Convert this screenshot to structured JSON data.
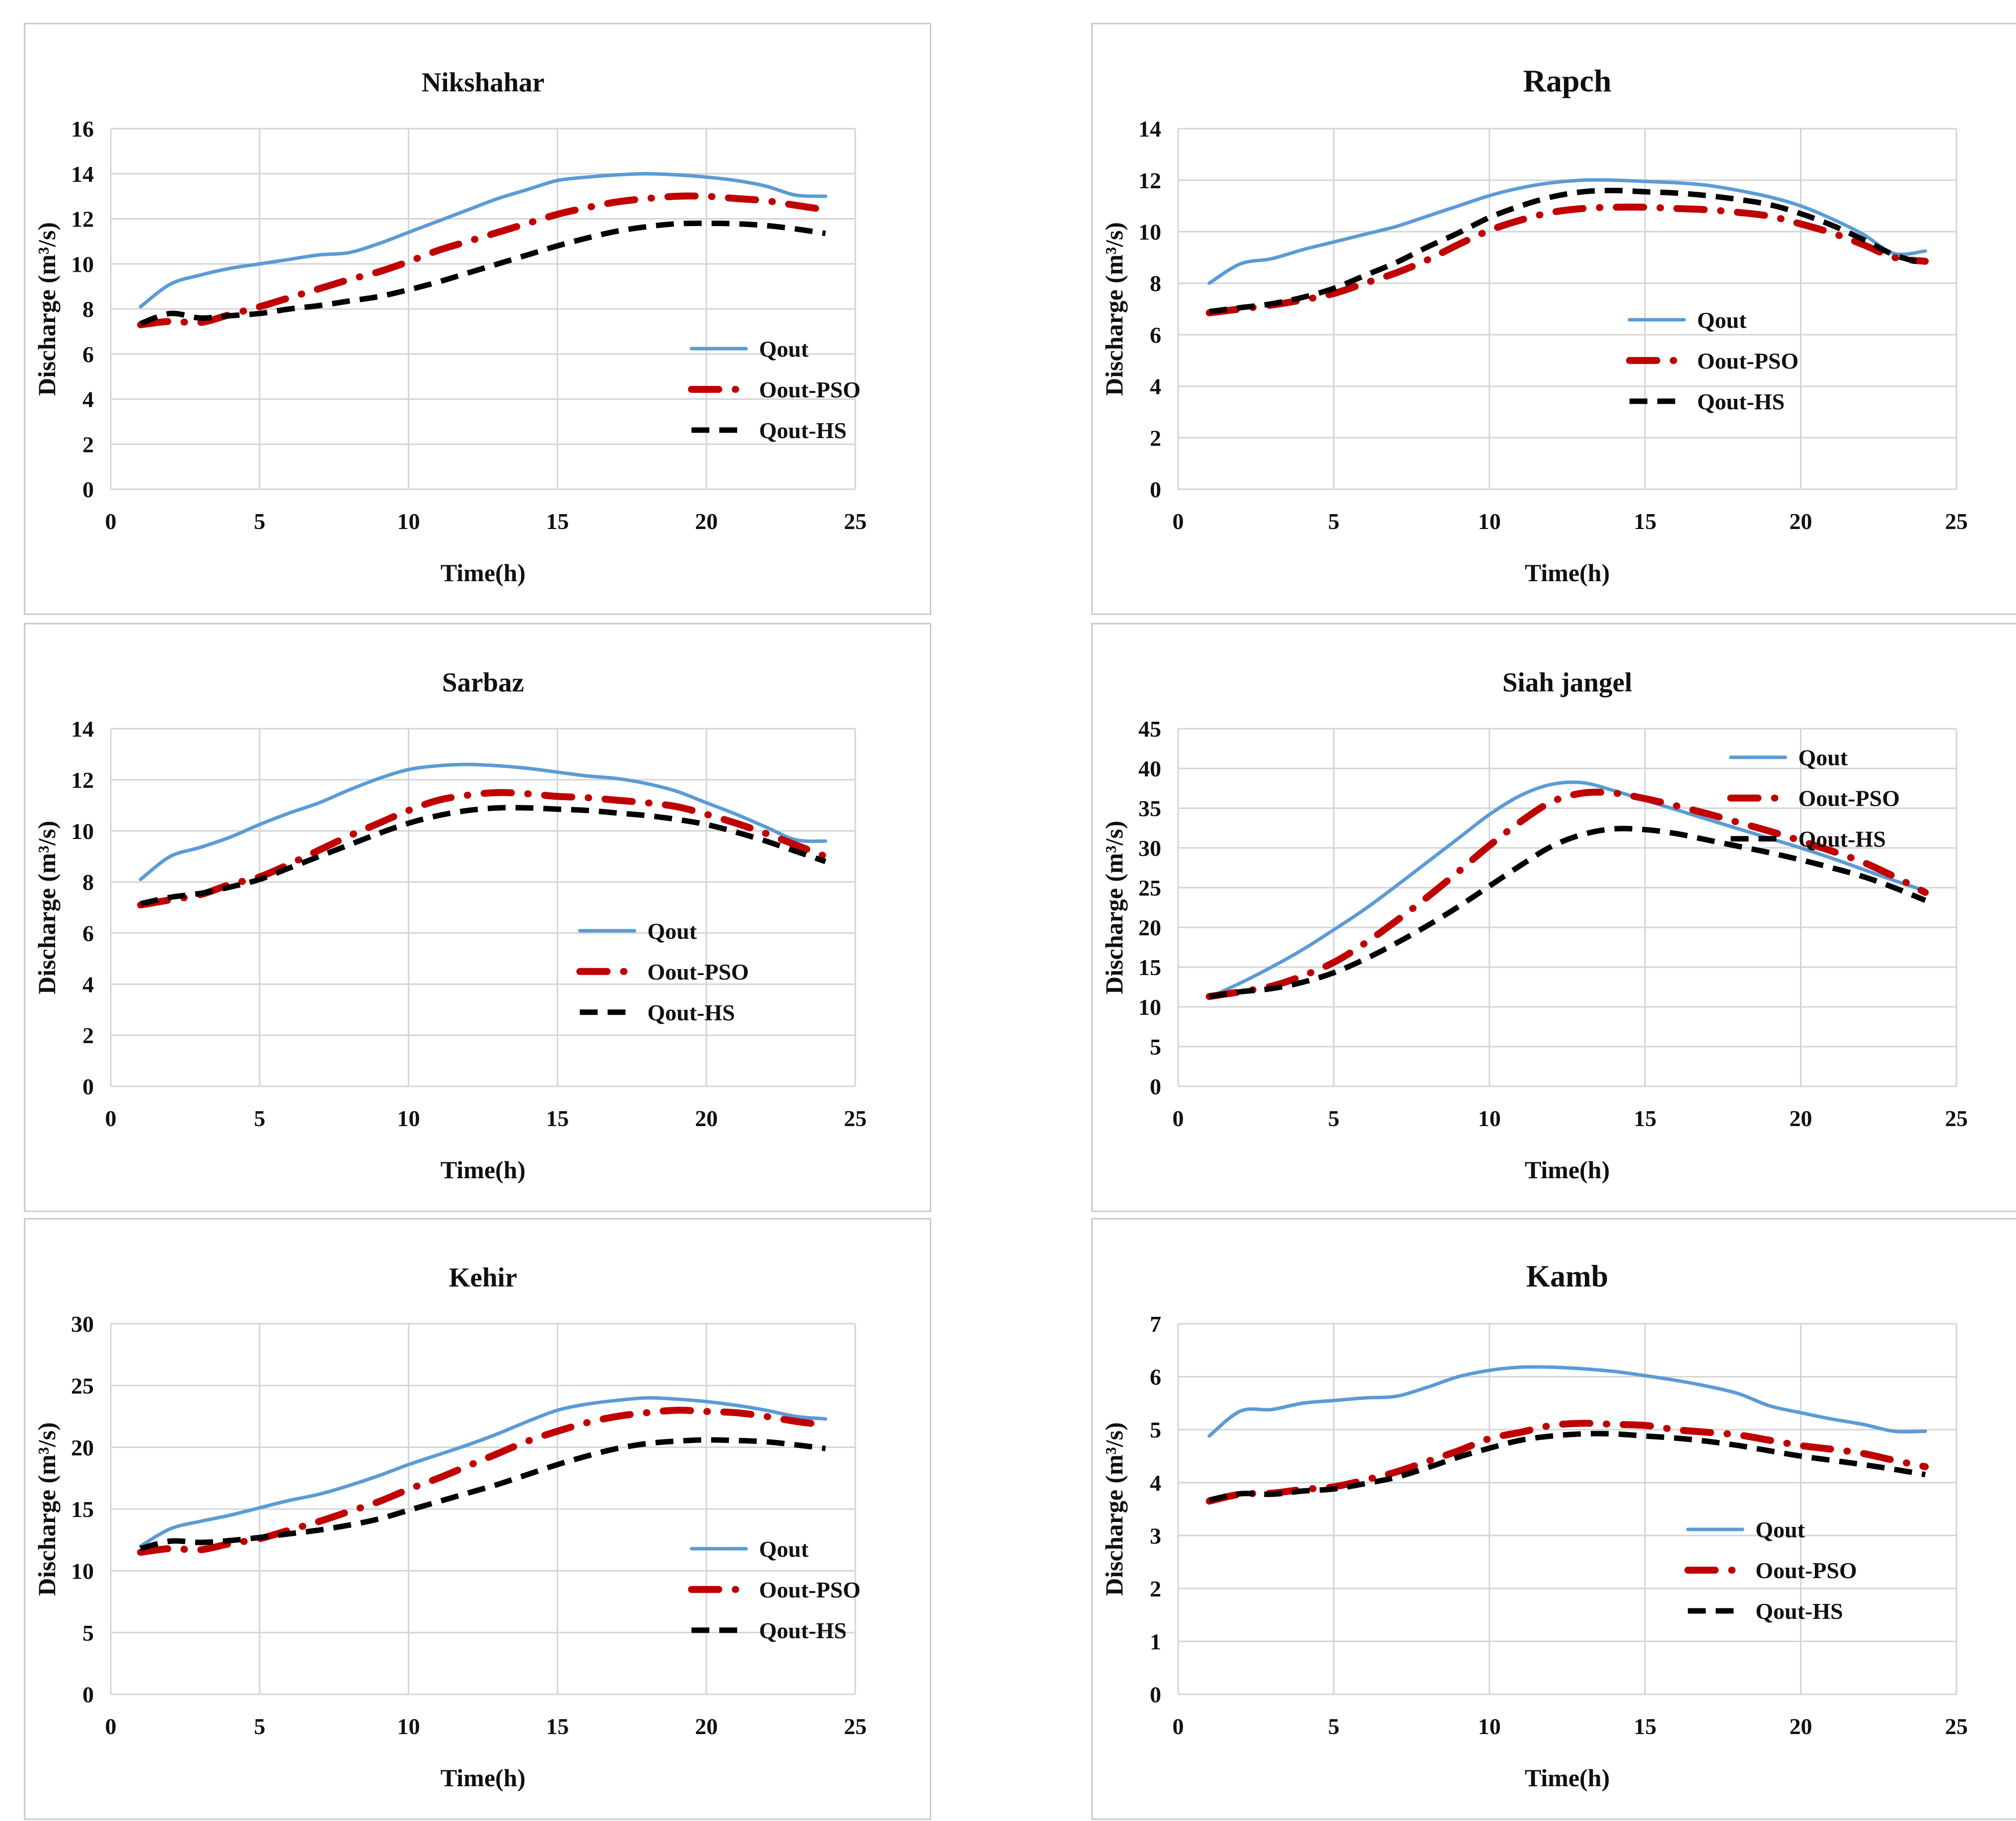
{
  "figure": {
    "background": "#ffffff",
    "panel_border": "#c9c9c9"
  },
  "colors": {
    "qout": "#5B9BD5",
    "pso": "#C00000",
    "hs": "#000000",
    "grid": "#d4d4d4",
    "text": "#101010"
  },
  "chart_data": [
    {
      "id": "nikshahar",
      "type": "line",
      "title": "Nikshahar",
      "title_size": 55,
      "xlabel": "Time(h)",
      "ylabel": "Discharge (m³/s)",
      "xlim": [
        0,
        25
      ],
      "xstep": 5,
      "ylim": [
        0,
        16
      ],
      "ystep": 2,
      "grid": true,
      "legend": {
        "position": "inside-right",
        "x": 0.78,
        "y": 0.61
      },
      "x": [
        1,
        2,
        3,
        4,
        5,
        6,
        7,
        8,
        9,
        10,
        11,
        12,
        13,
        14,
        15,
        16,
        17,
        18,
        19,
        20,
        21,
        22,
        23,
        24
      ],
      "series": [
        {
          "name": "Qout",
          "values": [
            8.1,
            9.1,
            9.5,
            9.8,
            10.0,
            10.2,
            10.4,
            10.5,
            10.9,
            11.4,
            11.9,
            12.4,
            12.9,
            13.3,
            13.7,
            13.85,
            13.95,
            14.0,
            13.95,
            13.85,
            13.7,
            13.45,
            13.05,
            13.0
          ]
        },
        {
          "name": "Oout-PSO",
          "values": [
            7.3,
            7.45,
            7.4,
            7.75,
            8.1,
            8.5,
            8.9,
            9.3,
            9.65,
            10.1,
            10.6,
            11.0,
            11.4,
            11.8,
            12.2,
            12.5,
            12.75,
            12.9,
            13.0,
            13.0,
            12.9,
            12.8,
            12.6,
            12.4
          ]
        },
        {
          "name": "Qout-HS",
          "values": [
            7.35,
            7.8,
            7.6,
            7.7,
            7.8,
            8.0,
            8.15,
            8.35,
            8.55,
            8.85,
            9.2,
            9.6,
            10.0,
            10.4,
            10.8,
            11.15,
            11.45,
            11.65,
            11.78,
            11.8,
            11.78,
            11.7,
            11.55,
            11.35
          ]
        }
      ]
    },
    {
      "id": "rapch",
      "type": "line",
      "title": "Rapch",
      "title_size": 64,
      "xlabel": "Time(h)",
      "ylabel": "Discharge (m³/s)",
      "xlim": [
        0,
        25
      ],
      "xstep": 5,
      "ylim": [
        0,
        14
      ],
      "ystep": 2,
      "grid": true,
      "legend": {
        "position": "inside-right",
        "x": 0.58,
        "y": 0.53
      },
      "x": [
        1,
        2,
        3,
        4,
        5,
        6,
        7,
        8,
        9,
        10,
        11,
        12,
        13,
        14,
        15,
        16,
        17,
        18,
        19,
        20,
        21,
        22,
        23,
        24
      ],
      "series": [
        {
          "name": "Qout",
          "values": [
            8.0,
            8.75,
            8.95,
            9.3,
            9.6,
            9.9,
            10.2,
            10.6,
            11.0,
            11.4,
            11.7,
            11.9,
            12.0,
            12.0,
            11.95,
            11.9,
            11.8,
            11.6,
            11.35,
            11.0,
            10.5,
            9.9,
            9.15,
            9.25
          ]
        },
        {
          "name": "Oout-PSO",
          "values": [
            6.85,
            7.0,
            7.15,
            7.35,
            7.6,
            8.0,
            8.4,
            8.9,
            9.5,
            10.05,
            10.45,
            10.75,
            10.9,
            10.95,
            10.95,
            10.9,
            10.85,
            10.75,
            10.6,
            10.3,
            9.95,
            9.5,
            9.0,
            8.85
          ]
        },
        {
          "name": "Qout-HS",
          "values": [
            6.9,
            7.05,
            7.2,
            7.45,
            7.8,
            8.3,
            8.8,
            9.4,
            9.95,
            10.55,
            11.0,
            11.35,
            11.55,
            11.6,
            11.55,
            11.5,
            11.4,
            11.25,
            11.05,
            10.7,
            10.25,
            9.7,
            9.1,
            8.75
          ]
        }
      ]
    },
    {
      "id": "sarbaz",
      "type": "line",
      "title": "Sarbaz",
      "title_size": 55,
      "xlabel": "Time(h)",
      "ylabel": "Discharge (m³/s)",
      "xlim": [
        0,
        25
      ],
      "xstep": 5,
      "ylim": [
        0,
        14
      ],
      "ystep": 2,
      "grid": true,
      "legend": {
        "position": "inside-right",
        "x": 0.63,
        "y": 0.565
      },
      "x": [
        1,
        2,
        3,
        4,
        5,
        6,
        7,
        8,
        9,
        10,
        11,
        12,
        13,
        14,
        15,
        16,
        17,
        18,
        19,
        20,
        21,
        22,
        23,
        24
      ],
      "series": [
        {
          "name": "Qout",
          "values": [
            8.1,
            9.0,
            9.35,
            9.75,
            10.25,
            10.7,
            11.1,
            11.6,
            12.05,
            12.4,
            12.55,
            12.6,
            12.55,
            12.45,
            12.3,
            12.15,
            12.05,
            11.85,
            11.55,
            11.1,
            10.65,
            10.15,
            9.65,
            9.6
          ]
        },
        {
          "name": "Oout-PSO",
          "values": [
            7.1,
            7.3,
            7.5,
            7.9,
            8.2,
            8.7,
            9.25,
            9.8,
            10.3,
            10.8,
            11.2,
            11.4,
            11.5,
            11.45,
            11.35,
            11.3,
            11.2,
            11.1,
            10.95,
            10.65,
            10.3,
            9.9,
            9.45,
            9.0
          ]
        },
        {
          "name": "Qout-HS",
          "values": [
            7.15,
            7.4,
            7.55,
            7.8,
            8.1,
            8.55,
            9.0,
            9.45,
            9.9,
            10.3,
            10.6,
            10.8,
            10.9,
            10.9,
            10.85,
            10.8,
            10.7,
            10.6,
            10.45,
            10.25,
            9.95,
            9.6,
            9.2,
            8.8
          ]
        }
      ]
    },
    {
      "id": "siah-jangel",
      "type": "line",
      "title": "Siah jangel",
      "title_size": 55,
      "xlabel": "Time(h)",
      "ylabel": "Discharge (m³/s)",
      "xlim": [
        0,
        25
      ],
      "xstep": 5,
      "ylim": [
        0,
        45
      ],
      "ystep": 5,
      "grid": true,
      "legend": {
        "position": "inside-top-right",
        "x": 0.71,
        "y": 0.08
      },
      "x": [
        1,
        2,
        3,
        4,
        5,
        6,
        7,
        8,
        9,
        10,
        11,
        12,
        13,
        14,
        15,
        16,
        17,
        18,
        19,
        20,
        21,
        22,
        23,
        24
      ],
      "series": [
        {
          "name": "Qout",
          "values": [
            11.2,
            13.0,
            15.0,
            17.2,
            19.7,
            22.3,
            25.2,
            28.2,
            31.2,
            34.2,
            36.6,
            38.0,
            38.2,
            37.2,
            36.0,
            34.8,
            33.6,
            32.4,
            31.2,
            30.0,
            28.7,
            27.3,
            25.9,
            24.6
          ]
        },
        {
          "name": "Oout-PSO",
          "values": [
            11.3,
            11.9,
            12.6,
            13.9,
            15.6,
            18.0,
            20.8,
            23.8,
            27.0,
            30.3,
            33.3,
            35.8,
            36.9,
            36.9,
            36.2,
            35.3,
            34.3,
            33.2,
            32.1,
            30.9,
            29.6,
            28.2,
            26.4,
            24.4
          ]
        },
        {
          "name": "Qout-HS",
          "values": [
            11.3,
            11.9,
            12.3,
            13.1,
            14.3,
            16.0,
            18.0,
            20.2,
            22.6,
            25.2,
            27.8,
            30.2,
            31.7,
            32.4,
            32.3,
            31.8,
            31.0,
            30.2,
            29.4,
            28.5,
            27.5,
            26.4,
            25.0,
            23.4
          ]
        }
      ]
    },
    {
      "id": "kehir",
      "type": "line",
      "title": "Kehir",
      "title_size": 55,
      "xlabel": "Time(h)",
      "ylabel": "Discharge (m³/s)",
      "xlim": [
        0,
        25
      ],
      "xstep": 5,
      "ylim": [
        0,
        30
      ],
      "ystep": 5,
      "grid": true,
      "legend": {
        "position": "inside-right",
        "x": 0.78,
        "y": 0.607
      },
      "x": [
        1,
        2,
        3,
        4,
        5,
        6,
        7,
        8,
        9,
        10,
        11,
        12,
        13,
        14,
        15,
        16,
        17,
        18,
        19,
        20,
        21,
        22,
        23,
        24
      ],
      "series": [
        {
          "name": "Qout",
          "values": [
            12.0,
            13.4,
            14.0,
            14.5,
            15.1,
            15.7,
            16.2,
            16.9,
            17.7,
            18.6,
            19.4,
            20.2,
            21.1,
            22.1,
            23.0,
            23.5,
            23.8,
            24.0,
            23.9,
            23.7,
            23.4,
            23.0,
            22.5,
            22.3
          ]
        },
        {
          "name": "Oout-PSO",
          "values": [
            11.5,
            11.8,
            11.7,
            12.2,
            12.6,
            13.3,
            14.0,
            14.8,
            15.6,
            16.6,
            17.5,
            18.5,
            19.5,
            20.5,
            21.3,
            22.0,
            22.5,
            22.8,
            23.0,
            22.9,
            22.8,
            22.5,
            22.1,
            21.8
          ]
        },
        {
          "name": "Qout-HS",
          "values": [
            11.8,
            12.4,
            12.3,
            12.45,
            12.7,
            13.0,
            13.3,
            13.7,
            14.2,
            14.9,
            15.6,
            16.3,
            17.0,
            17.8,
            18.6,
            19.3,
            19.9,
            20.3,
            20.5,
            20.6,
            20.55,
            20.45,
            20.2,
            19.9
          ]
        }
      ]
    },
    {
      "id": "kamb",
      "type": "line",
      "title": "Kamb",
      "title_size": 62,
      "xlabel": "Time(h)",
      "ylabel": "Discharge (m³/s)",
      "xlim": [
        0,
        25
      ],
      "xstep": 5,
      "ylim": [
        0,
        7
      ],
      "ystep": 1,
      "grid": true,
      "legend": {
        "position": "inside-right",
        "x": 0.655,
        "y": 0.555
      },
      "x": [
        1,
        2,
        3,
        4,
        5,
        6,
        7,
        8,
        9,
        10,
        11,
        12,
        13,
        14,
        15,
        16,
        17,
        18,
        19,
        20,
        21,
        22,
        23,
        24
      ],
      "series": [
        {
          "name": "Qout",
          "values": [
            4.88,
            5.35,
            5.38,
            5.5,
            5.55,
            5.6,
            5.63,
            5.8,
            6.0,
            6.12,
            6.18,
            6.18,
            6.15,
            6.1,
            6.02,
            5.93,
            5.82,
            5.68,
            5.45,
            5.32,
            5.2,
            5.1,
            4.97,
            4.97
          ]
        },
        {
          "name": "Oout-PSO",
          "values": [
            3.65,
            3.78,
            3.8,
            3.87,
            3.92,
            4.05,
            4.2,
            4.4,
            4.6,
            4.83,
            4.95,
            5.08,
            5.12,
            5.1,
            5.08,
            5.0,
            4.95,
            4.9,
            4.8,
            4.7,
            4.63,
            4.55,
            4.42,
            4.3
          ]
        },
        {
          "name": "Qout-HS",
          "values": [
            3.67,
            3.79,
            3.78,
            3.84,
            3.88,
            3.98,
            4.1,
            4.28,
            4.48,
            4.65,
            4.8,
            4.88,
            4.92,
            4.92,
            4.88,
            4.84,
            4.78,
            4.7,
            4.6,
            4.5,
            4.42,
            4.34,
            4.25,
            4.15
          ]
        }
      ]
    }
  ]
}
